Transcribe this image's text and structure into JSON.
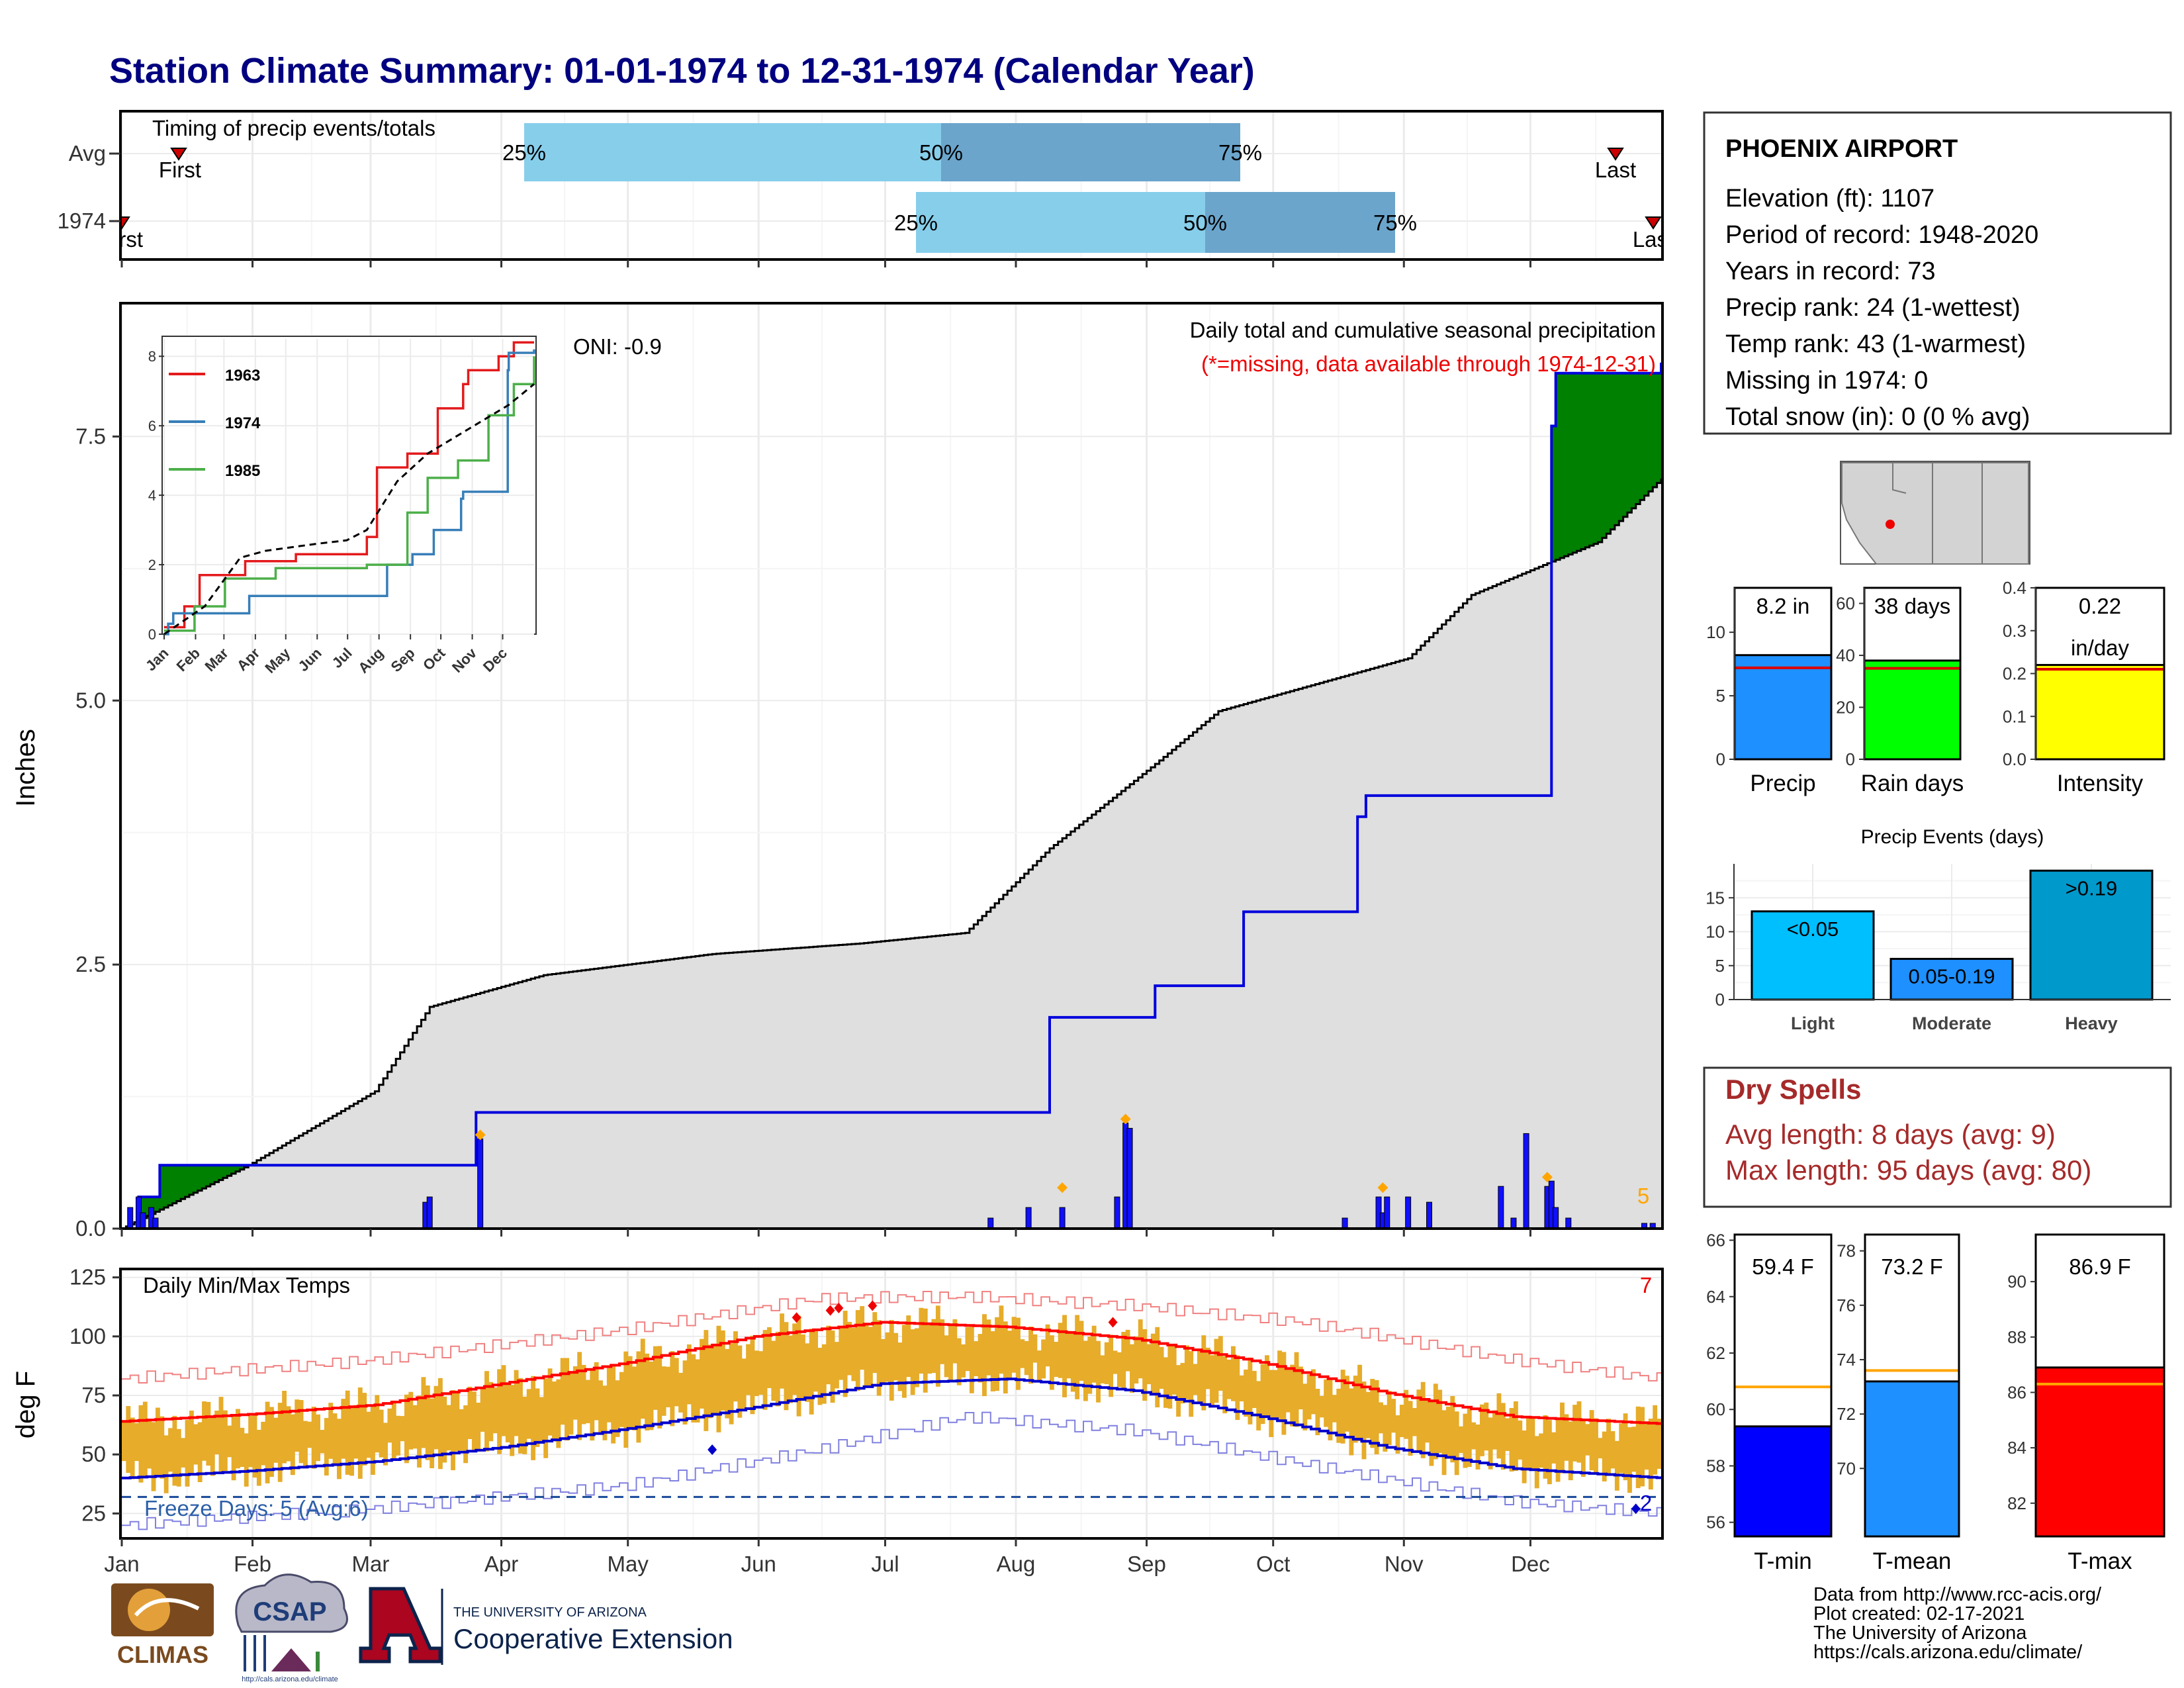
{
  "title": "Station Climate Summary: 01-01-1974 to 12-31-1974 (Calendar Year)",
  "colors": {
    "title": "#000080",
    "above_avg": "#008000",
    "below_avg": "#8B5A00",
    "normal_fill": "#DFDFDF",
    "current_line": "#0000DD",
    "daily_bar": "#1010FF",
    "marker": "#FFA500",
    "quartile_light": "#87CEEB",
    "quartile_dark": "#6BA5CC",
    "temp_bar": "#E6AC2A",
    "tmax_line": "#FF0000",
    "tmin_line": "#0000CC",
    "dry_spells": "#A52A2A"
  },
  "timing": {
    "label": "Timing of precip events/totals",
    "rows": [
      {
        "name": "Avg",
        "first": "First",
        "last": "Last",
        "q25": "25%",
        "q50": "50%",
        "q75": "75%"
      },
      {
        "name": "1974",
        "first": "First",
        "last": "Last",
        "q25": "25%",
        "q50": "50%",
        "q75": "75%"
      }
    ]
  },
  "main": {
    "ylabel": "Inches",
    "oni": "ONI: -0.9",
    "caption": "Daily total and cumulative seasonal precipitation",
    "missing_note": "(*=missing, data available through 1974-12-31)",
    "corner_count": "5",
    "yticks": [
      "0.0",
      "2.5",
      "5.0",
      "7.5"
    ]
  },
  "inset": {
    "legend": [
      "1963",
      "1974",
      "1985"
    ],
    "legend_colors": [
      "#E41A1C",
      "#377EB8",
      "#4DAF4A"
    ],
    "yticks": [
      "0",
      "2",
      "4",
      "6",
      "8"
    ],
    "xticks": [
      "Jan",
      "Feb",
      "Mar",
      "Apr",
      "May",
      "Jun",
      "Jul",
      "Aug",
      "Sep",
      "Oct",
      "Nov",
      "Dec"
    ]
  },
  "temps": {
    "label": "Daily Min/Max Temps",
    "ylabel": "deg F",
    "freeze": "Freeze Days: 5 (Avg:6)",
    "count_hot": "7",
    "count_cold": "2",
    "yticks": [
      "25",
      "50",
      "75",
      "100",
      "125"
    ]
  },
  "months": [
    "Jan",
    "Feb",
    "Mar",
    "Apr",
    "May",
    "Jun",
    "Jul",
    "Aug",
    "Sep",
    "Oct",
    "Nov",
    "Dec"
  ],
  "station": {
    "name": "PHOENIX AIRPORT",
    "lines": [
      "Elevation (ft): 1107",
      "Period of record: 1948-2020",
      "Years in record: 73",
      "Precip rank: 24 (1-wettest)",
      "Temp rank: 43 (1-warmest)",
      "Missing in 1974: 0",
      "Total snow (in): 0 (0 % avg)"
    ]
  },
  "summary_bars": [
    {
      "label": "Precip",
      "value_text": "8.2 in",
      "value_text2": "",
      "color": "#1E90FF",
      "ticks": [
        "0",
        "5",
        "10"
      ]
    },
    {
      "label": "Rain days",
      "value_text": "38 days",
      "value_text2": "",
      "color": "#00FF00",
      "ticks": [
        "0",
        "20",
        "40",
        "60"
      ]
    },
    {
      "label": "Intensity",
      "value_text": "0.22",
      "value_text2": "in/day",
      "color": "#FFFF00",
      "ticks": [
        "0.0",
        "0.1",
        "0.2",
        "0.3",
        "0.4"
      ]
    }
  ],
  "events": {
    "title": "Precip Events (days)",
    "categories": [
      "Light",
      "Moderate",
      "Heavy"
    ],
    "bar_labels": [
      "<0.05",
      "0.05-0.19",
      ">0.19"
    ],
    "values": [
      13,
      6,
      19
    ],
    "ticks": [
      "0",
      "5",
      "10",
      "15"
    ],
    "colors": [
      "#00BFFF",
      "#1E90FF",
      "#0099CC"
    ]
  },
  "dry_spells": {
    "title": "Dry Spells",
    "avg": "Avg length: 8 days (avg: 9)",
    "max": "Max length: 95 days (avg: 80)"
  },
  "temp_bars": [
    {
      "label": "T-min",
      "value_text": "59.4 F",
      "color": "#0000FF",
      "ticks": [
        "56",
        "58",
        "60",
        "62",
        "64",
        "66"
      ]
    },
    {
      "label": "T-mean",
      "value_text": "73.2 F",
      "color": "#1E90FF",
      "ticks": [
        "70",
        "72",
        "74",
        "76",
        "78"
      ]
    },
    {
      "label": "T-max",
      "value_text": "86.9 F",
      "color": "#FF0000",
      "ticks": [
        "82",
        "84",
        "86",
        "88",
        "90"
      ]
    }
  ],
  "footer": {
    "lines": [
      "Data from http://www.rcc-acis.org/",
      "Plot created: 02-17-2021",
      "The University of Arizona",
      "https://cals.arizona.edu/climate/"
    ],
    "logo_climas": "CLIMAS",
    "logo_csap": "CSAP",
    "logo_csap_url": "http://cals.arizona.edu/climate",
    "logo_ua_small": "THE UNIVERSITY OF ARIZONA",
    "logo_ua_big": "Cooperative Extension"
  },
  "chart_data": [
    {
      "type": "area",
      "title": "Daily total and cumulative seasonal precipitation",
      "ylabel": "Inches",
      "ylim": [
        0,
        8.75
      ],
      "x_categories": [
        "Jan",
        "Feb",
        "Mar",
        "Apr",
        "May",
        "Jun",
        "Jul",
        "Aug",
        "Sep",
        "Oct",
        "Nov",
        "Dec"
      ],
      "series": [
        {
          "name": "1974",
          "x_day": [
            0,
            4,
            9,
            71,
            84,
            220,
            230,
            245,
            266,
            293,
            295,
            339,
            340,
            365
          ],
          "values": [
            0,
            0.3,
            0.6,
            0.6,
            1.1,
            2.0,
            2.0,
            2.3,
            3.0,
            3.9,
            4.1,
            7.6,
            8.1,
            8.2
          ]
        },
        {
          "x_day": [
            0,
            30,
            60,
            73,
            100,
            140,
            175,
            200,
            220,
            245,
            260,
            305,
            320,
            350,
            365
          ],
          "values": [
            0,
            0.6,
            1.3,
            2.1,
            2.4,
            2.6,
            2.7,
            2.8,
            3.6,
            4.4,
            4.9,
            5.4,
            6.0,
            6.5,
            7.1
          ]
        }
      ],
      "daily_x_day": [
        2,
        4,
        5,
        7,
        8,
        72,
        73,
        85,
        206,
        215,
        223,
        236,
        238,
        239,
        290,
        298,
        299,
        300,
        305,
        310,
        327,
        330,
        333,
        338,
        339,
        340,
        343,
        361,
        363
      ],
      "daily_values": [
        0.2,
        0.3,
        0.15,
        0.2,
        0.1,
        0.25,
        0.3,
        0.85,
        0.1,
        0.2,
        0.2,
        0.3,
        1.0,
        0.95,
        0.1,
        0.3,
        0.15,
        0.3,
        0.3,
        0.25,
        0.4,
        0.1,
        0.9,
        0.4,
        0.45,
        0.2,
        0.1,
        0.05,
        0.05
      ]
    },
    {
      "type": "line",
      "title": "",
      "ylim": [
        0,
        8.5
      ],
      "xticks": [
        "Jan",
        "Feb",
        "Mar",
        "Apr",
        "May",
        "Jun",
        "Jul",
        "Aug",
        "Sep",
        "Oct",
        "Nov",
        "Dec"
      ],
      "series": [
        {
          "name": "1963",
          "x_day": [
            0,
            20,
            35,
            80,
            130,
            200,
            210,
            240,
            270,
            295,
            300,
            330,
            345,
            365
          ],
          "values": [
            0.2,
            0.8,
            1.7,
            2.1,
            2.3,
            2.8,
            4.8,
            5.2,
            6.5,
            7.2,
            7.6,
            8.0,
            8.4,
            8.4
          ]
        },
        {
          "name": "1974",
          "x_day": [
            0,
            4,
            9,
            71,
            84,
            220,
            230,
            245,
            266,
            293,
            295,
            339,
            340,
            365
          ],
          "values": [
            0,
            0.3,
            0.6,
            0.6,
            1.1,
            2.0,
            2.0,
            2.3,
            3.0,
            3.9,
            4.1,
            7.6,
            8.1,
            8.2
          ]
        },
        {
          "name": "1985",
          "x_day": [
            0,
            30,
            60,
            110,
            200,
            240,
            260,
            290,
            320,
            345,
            365
          ],
          "values": [
            0.1,
            0.8,
            1.6,
            1.9,
            2.0,
            3.5,
            4.5,
            5.0,
            6.3,
            7.2,
            8.0
          ]
        },
        {
          "x_day": [
            0,
            40,
            75,
            100,
            150,
            180,
            200,
            230,
            260,
            300,
            340,
            365
          ],
          "values": [
            0,
            0.8,
            2.2,
            2.4,
            2.6,
            2.7,
            3.0,
            4.4,
            5.2,
            5.9,
            6.6,
            7.2
          ]
        }
      ]
    },
    {
      "type": "line",
      "title": "Daily Min/Max Temps",
      "ylabel": "deg F",
      "ylim": [
        15,
        128
      ],
      "x_categories": [
        "Jan",
        "Feb",
        "Mar",
        "Apr",
        "May",
        "Jun",
        "Jul",
        "Aug",
        "Sep",
        "Oct",
        "Nov",
        "Dec"
      ],
      "series": [
        {
          "name": "Avg max",
          "x_day": [
            0,
            30,
            60,
            90,
            120,
            150,
            180,
            210,
            240,
            270,
            300,
            330,
            365
          ],
          "values": [
            64,
            67,
            71,
            80,
            89,
            100,
            106,
            104,
            99,
            89,
            76,
            66,
            63
          ]
        },
        {
          "name": "Avg min",
          "x_day": [
            0,
            30,
            60,
            90,
            120,
            150,
            180,
            210,
            240,
            270,
            300,
            330,
            365
          ],
          "values": [
            40,
            43,
            47,
            53,
            61,
            70,
            80,
            82,
            77,
            66,
            53,
            44,
            40
          ]
        },
        {
          "name": "Record max",
          "x_day": [
            0,
            60,
            120,
            165,
            200,
            240,
            280,
            330,
            365
          ],
          "values": [
            82,
            90,
            103,
            116,
            117,
            113,
            106,
            90,
            82
          ]
        },
        {
          "name": "Record min",
          "x_day": [
            0,
            60,
            120,
            165,
            200,
            240,
            280,
            330,
            365
          ],
          "values": [
            20,
            27,
            37,
            52,
            66,
            60,
            46,
            30,
            25
          ]
        }
      ],
      "freeze_line": 32
    },
    {
      "type": "bar",
      "title": "",
      "categories": [
        "Precip",
        "Rain days",
        "Intensity"
      ],
      "values": [
        8.2,
        38,
        0.22
      ],
      "averages": [
        7.2,
        35,
        0.21
      ],
      "ylims": [
        [
          0,
          13.5
        ],
        [
          0,
          66
        ],
        [
          0,
          0.4
        ]
      ]
    },
    {
      "type": "bar",
      "title": "Precip Events (days)",
      "categories": [
        "Light",
        "Moderate",
        "Heavy"
      ],
      "bar_labels": [
        "<0.05",
        "0.05-0.19",
        ">0.19"
      ],
      "values": [
        13,
        6,
        19
      ],
      "ylim": [
        0,
        20
      ]
    },
    {
      "type": "bar",
      "title": "",
      "categories": [
        "T-min",
        "T-mean",
        "T-max"
      ],
      "values": [
        59.4,
        73.2,
        86.9
      ],
      "averages": [
        60.8,
        73.6,
        86.3
      ],
      "ylims": [
        [
          55.5,
          66.2
        ],
        [
          67.5,
          78.6
        ],
        [
          80.8,
          91.7
        ]
      ]
    }
  ]
}
